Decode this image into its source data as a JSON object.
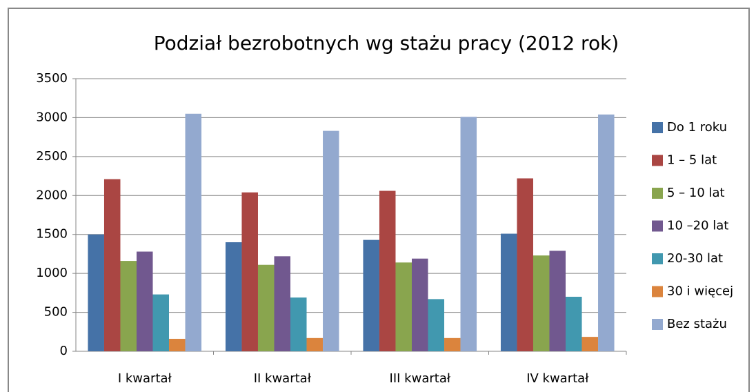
{
  "chart_data": {
    "type": "bar",
    "title": "Podział bezrobotnych wg stażu pracy (2012 rok)",
    "categories": [
      "I kwartał",
      "II kwartał",
      "III kwartał",
      "IV kwartał"
    ],
    "series": [
      {
        "name": "Do 1 roku",
        "color": "#4572a7",
        "values": [
          1500,
          1400,
          1430,
          1510
        ]
      },
      {
        "name": "1 – 5 lat",
        "color": "#aa4643",
        "values": [
          2210,
          2040,
          2060,
          2220
        ]
      },
      {
        "name": "5 – 10 lat",
        "color": "#89a54e",
        "values": [
          1160,
          1110,
          1140,
          1230
        ]
      },
      {
        "name": "10 –20 lat",
        "color": "#71588f",
        "values": [
          1280,
          1220,
          1190,
          1290
        ]
      },
      {
        "name": "20-30 lat",
        "color": "#4198af",
        "values": [
          730,
          690,
          670,
          700
        ]
      },
      {
        "name": "30 i więcej",
        "color": "#db843d",
        "values": [
          160,
          170,
          170,
          185
        ]
      },
      {
        "name": "Bez stażu",
        "color": "#93a9cf",
        "values": [
          3050,
          2830,
          3010,
          3040
        ]
      }
    ],
    "ylim": [
      0,
      3500
    ],
    "yticks": [
      0,
      500,
      1000,
      1500,
      2000,
      2500,
      3000,
      3500
    ],
    "grid": true,
    "legend": "right"
  }
}
